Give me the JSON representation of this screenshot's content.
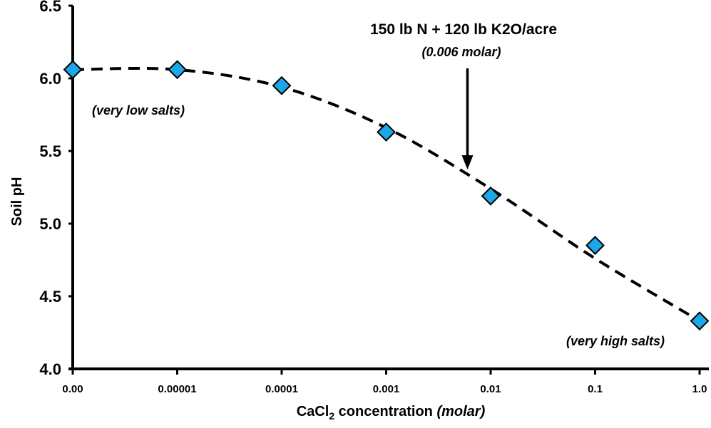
{
  "chart_data": {
    "type": "scatter",
    "xlabel_prefix": "CaCl",
    "xlabel_sub": "2",
    "xlabel_rest": " concentration ",
    "xlabel_unit": "(molar)",
    "ylabel": "Soil pH",
    "ylim": [
      4.0,
      6.5
    ],
    "y_ticks": [
      "4.0",
      "4.5",
      "5.0",
      "5.5",
      "6.0",
      "6.5"
    ],
    "x_tick_labels": [
      "0.00",
      "0.00001",
      "0.0001",
      "0.001",
      "0.01",
      "0.1",
      "1.0"
    ],
    "x_scale": "log",
    "grid": false,
    "marker_color": "#1ea7e8",
    "points": [
      {
        "x": "0.00",
        "y": 6.06
      },
      {
        "x": "0.00001",
        "y": 6.06
      },
      {
        "x": "0.0001",
        "y": 5.95
      },
      {
        "x": "0.001",
        "y": 5.63
      },
      {
        "x": "0.01",
        "y": 5.19
      },
      {
        "x": "0.1",
        "y": 4.85
      },
      {
        "x": "1.0",
        "y": 4.33
      }
    ],
    "trend_line": "dashed",
    "annotations": {
      "main_line1": "150 lb N + 120 lb K2O/acre",
      "main_line2": "(0.006 molar)",
      "arrow_x": 0.006,
      "low": "(very low salts)",
      "high": "(very high salts)"
    }
  }
}
